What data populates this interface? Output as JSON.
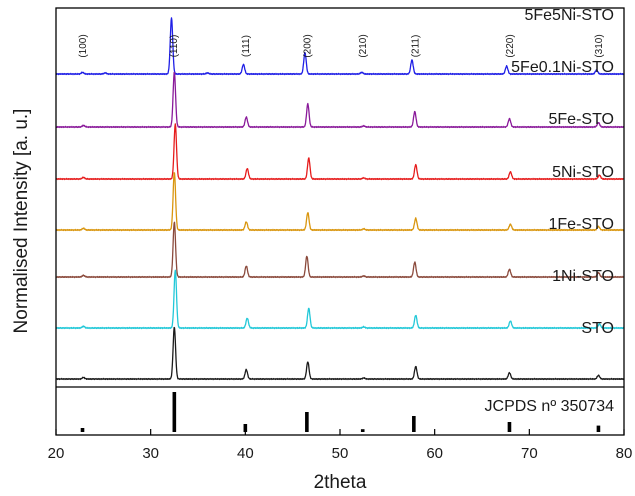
{
  "chart_data": {
    "type": "line",
    "title": "",
    "xlabel": "2theta",
    "ylabel": "Normalised Intensity [a. u.]",
    "xlim": [
      20,
      80
    ],
    "x_ticks": [
      "20",
      "30",
      "40",
      "50",
      "60",
      "70",
      "80"
    ],
    "y_ticks": "none",
    "grid": false,
    "peak_indices": [
      {
        "label": "(100)",
        "x": 22.8
      },
      {
        "label": "(110)",
        "x": 32.4
      },
      {
        "label": "(111)",
        "x": 40.0
      },
      {
        "label": "(200)",
        "x": 46.5
      },
      {
        "label": "(210)",
        "x": 52.4
      },
      {
        "label": "(211)",
        "x": 57.9
      },
      {
        "label": "(220)",
        "x": 67.9
      },
      {
        "label": "(310)",
        "x": 77.3
      }
    ],
    "series": [
      {
        "name": "5Fe5Ni-STO",
        "color": "#1f1fe6",
        "peaks": [
          {
            "x": 22.8,
            "h": 0.03
          },
          {
            "x": 25.2,
            "h": 0.02
          },
          {
            "x": 32.2,
            "h": 1.0
          },
          {
            "x": 36.0,
            "h": 0.02
          },
          {
            "x": 39.8,
            "h": 0.17
          },
          {
            "x": 46.3,
            "h": 0.38
          },
          {
            "x": 52.3,
            "h": 0.03
          },
          {
            "x": 57.6,
            "h": 0.25
          },
          {
            "x": 67.6,
            "h": 0.14
          },
          {
            "x": 77.1,
            "h": 0.07
          }
        ]
      },
      {
        "name": "5Fe0.1Ni-STO",
        "color": "#8a1a9a",
        "peaks": [
          {
            "x": 22.9,
            "h": 0.03
          },
          {
            "x": 32.5,
            "h": 1.0
          },
          {
            "x": 40.1,
            "h": 0.18
          },
          {
            "x": 46.6,
            "h": 0.42
          },
          {
            "x": 52.5,
            "h": 0.02
          },
          {
            "x": 57.9,
            "h": 0.28
          },
          {
            "x": 67.9,
            "h": 0.15
          },
          {
            "x": 77.3,
            "h": 0.08
          }
        ]
      },
      {
        "name": "5Fe-STO",
        "color": "#e61c1c",
        "peaks": [
          {
            "x": 22.9,
            "h": 0.03
          },
          {
            "x": 32.6,
            "h": 1.0
          },
          {
            "x": 40.2,
            "h": 0.19
          },
          {
            "x": 46.7,
            "h": 0.38
          },
          {
            "x": 52.5,
            "h": 0.02
          },
          {
            "x": 58.0,
            "h": 0.26
          },
          {
            "x": 68.0,
            "h": 0.13
          },
          {
            "x": 77.4,
            "h": 0.07
          }
        ]
      },
      {
        "name": "5Ni-STO",
        "color": "#d9960f",
        "peaks": [
          {
            "x": 22.9,
            "h": 0.03
          },
          {
            "x": 32.5,
            "h": 1.0
          },
          {
            "x": 40.1,
            "h": 0.14
          },
          {
            "x": 46.6,
            "h": 0.3
          },
          {
            "x": 52.5,
            "h": 0.02
          },
          {
            "x": 58.0,
            "h": 0.2
          },
          {
            "x": 68.0,
            "h": 0.1
          },
          {
            "x": 77.3,
            "h": 0.06
          }
        ]
      },
      {
        "name": "1Fe-STO",
        "color": "#8b4a3c",
        "peaks": [
          {
            "x": 22.9,
            "h": 0.03
          },
          {
            "x": 32.5,
            "h": 1.0
          },
          {
            "x": 40.1,
            "h": 0.2
          },
          {
            "x": 46.5,
            "h": 0.38
          },
          {
            "x": 52.5,
            "h": 0.02
          },
          {
            "x": 57.9,
            "h": 0.27
          },
          {
            "x": 67.9,
            "h": 0.14
          },
          {
            "x": 77.3,
            "h": 0.08
          }
        ]
      },
      {
        "name": "1Ni-STO",
        "color": "#22c8d8",
        "peaks": [
          {
            "x": 22.9,
            "h": 0.03
          },
          {
            "x": 32.6,
            "h": 1.0
          },
          {
            "x": 40.2,
            "h": 0.17
          },
          {
            "x": 46.7,
            "h": 0.34
          },
          {
            "x": 52.5,
            "h": 0.02
          },
          {
            "x": 58.0,
            "h": 0.22
          },
          {
            "x": 68.0,
            "h": 0.12
          },
          {
            "x": 77.4,
            "h": 0.07
          }
        ]
      },
      {
        "name": "STO",
        "color": "#1a1a1a",
        "peaks": [
          {
            "x": 22.9,
            "h": 0.03
          },
          {
            "x": 32.5,
            "h": 1.0
          },
          {
            "x": 40.1,
            "h": 0.18
          },
          {
            "x": 46.6,
            "h": 0.33
          },
          {
            "x": 52.5,
            "h": 0.02
          },
          {
            "x": 58.0,
            "h": 0.24
          },
          {
            "x": 67.9,
            "h": 0.12
          },
          {
            "x": 77.3,
            "h": 0.07
          }
        ]
      }
    ],
    "reference": {
      "name": "JCPDS nº 350734",
      "color": "#000000",
      "lines": [
        {
          "x": 22.8,
          "h": 0.1
        },
        {
          "x": 32.5,
          "h": 1.0
        },
        {
          "x": 40.0,
          "h": 0.2
        },
        {
          "x": 46.5,
          "h": 0.5
        },
        {
          "x": 52.4,
          "h": 0.07
        },
        {
          "x": 57.8,
          "h": 0.4
        },
        {
          "x": 67.9,
          "h": 0.25
        },
        {
          "x": 77.3,
          "h": 0.16
        }
      ]
    }
  }
}
